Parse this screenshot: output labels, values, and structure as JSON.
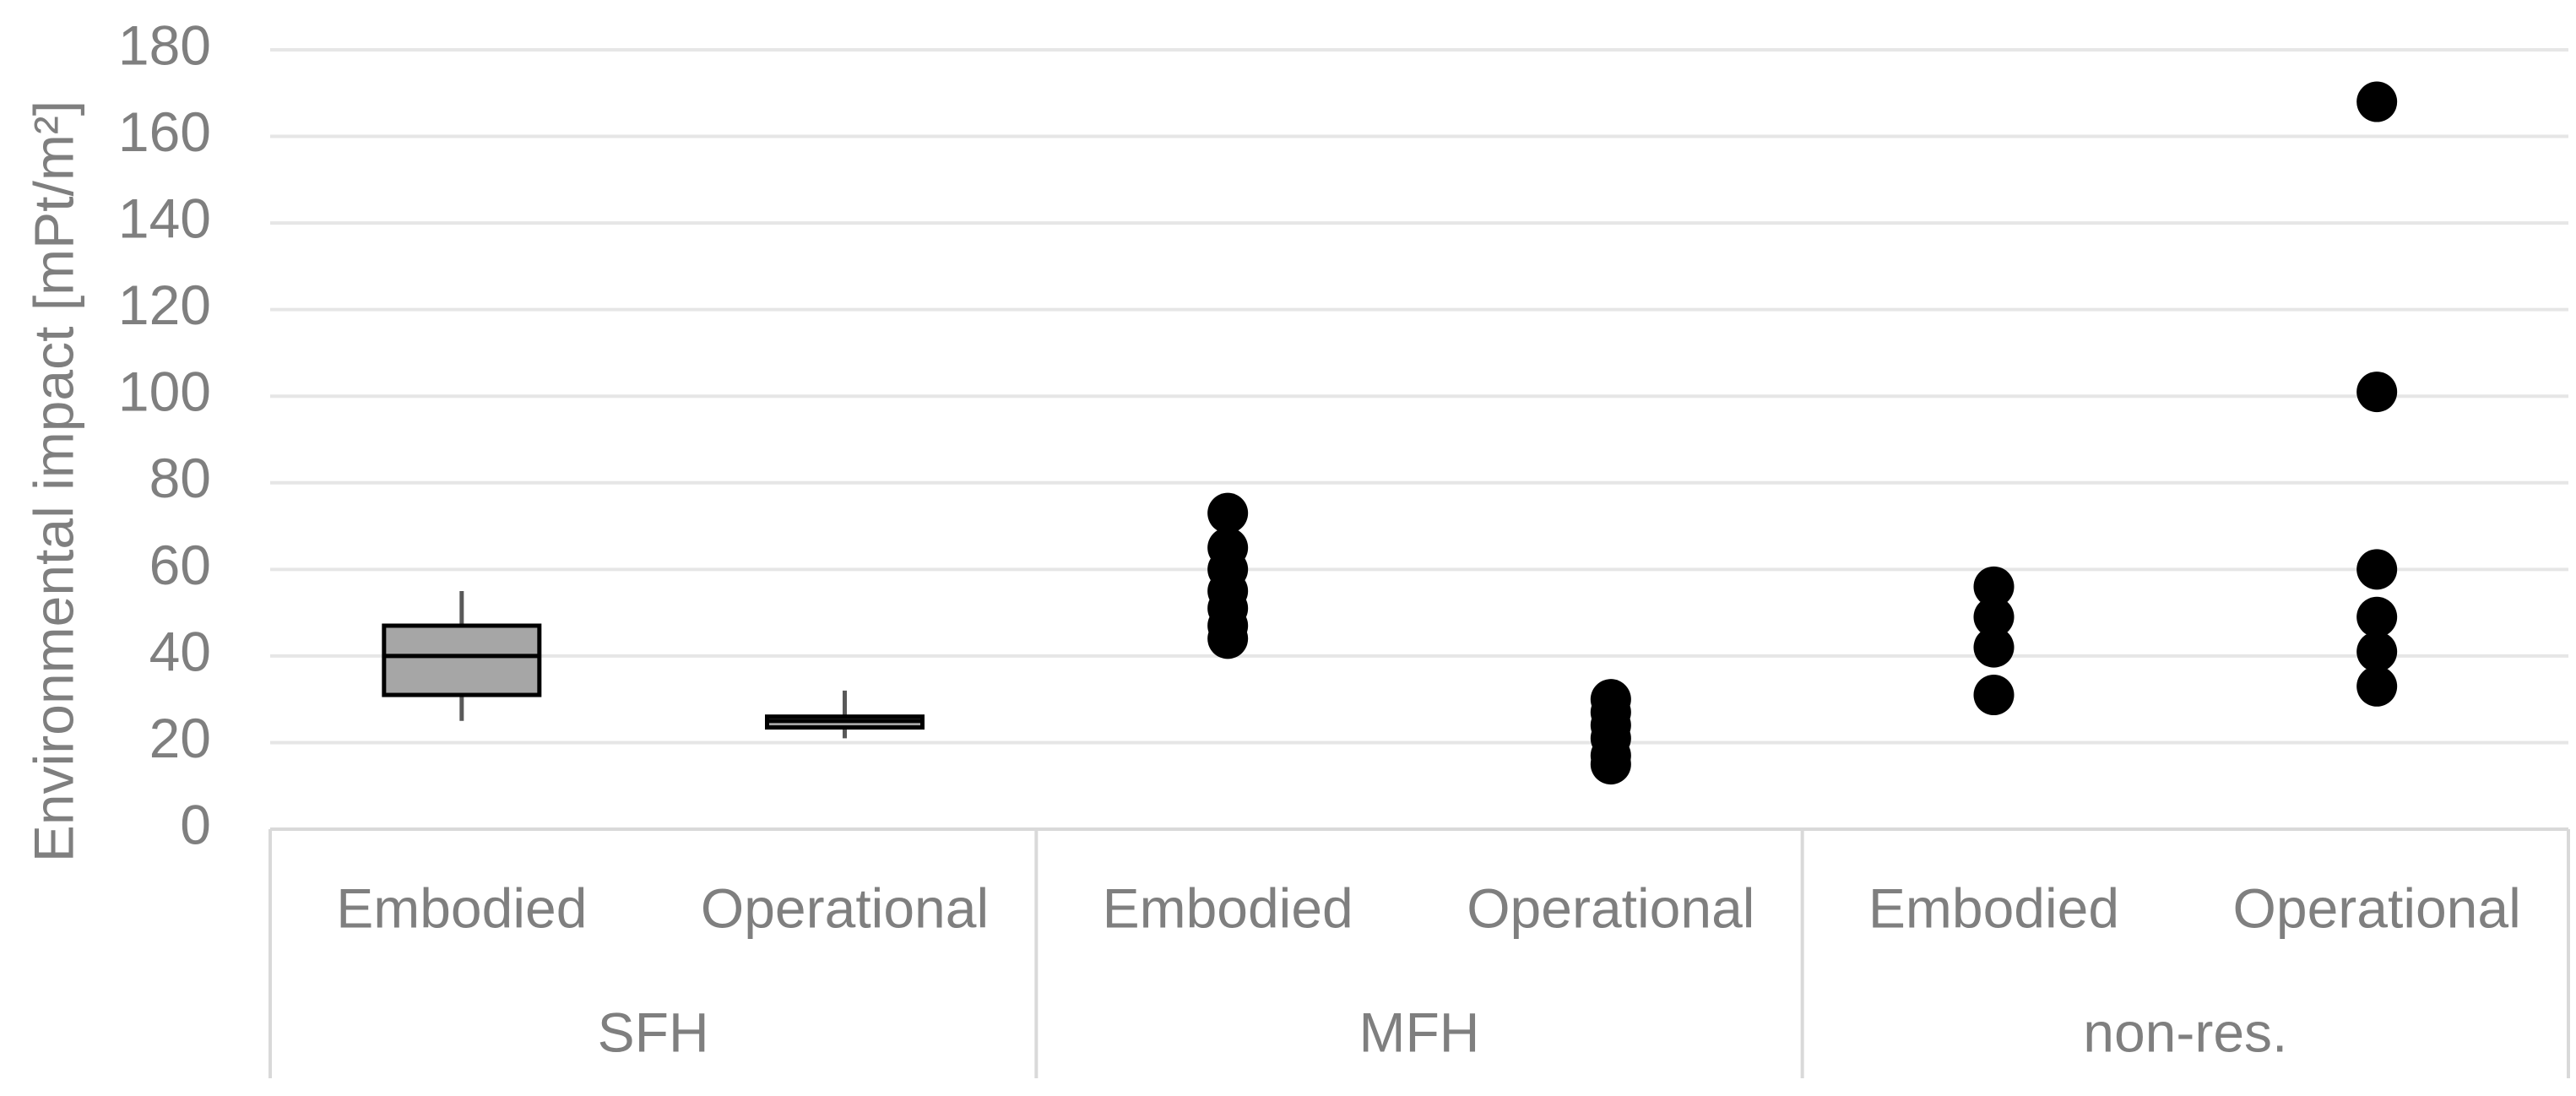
{
  "chart_data": {
    "type": "box",
    "y_label": "Environmental impact [mPt/m²]",
    "ylim": [
      0,
      180
    ],
    "yticks": [
      0,
      20,
      40,
      60,
      80,
      100,
      120,
      140,
      160,
      180
    ],
    "grid": true,
    "box_color": "#a6a6a6",
    "point_color": "#000000",
    "groups": [
      {
        "name": "SFH",
        "categories": [
          {
            "name": "Embodied",
            "type": "box",
            "box": {
              "whislo": 25,
              "q1": 31,
              "med": 40,
              "q3": 47,
              "whishi": 55
            }
          },
          {
            "name": "Operational",
            "type": "box",
            "box": {
              "whislo": 21,
              "q1": 23.5,
              "med": 25,
              "q3": 26,
              "whishi": 32
            }
          }
        ]
      },
      {
        "name": "MFH",
        "categories": [
          {
            "name": "Embodied",
            "type": "scatter",
            "points": [
              73,
              65,
              60,
              55,
              51,
              47,
              44
            ]
          },
          {
            "name": "Operational",
            "type": "scatter",
            "points": [
              30,
              27,
              24,
              21,
              17,
              15
            ]
          }
        ]
      },
      {
        "name": "non-res.",
        "categories": [
          {
            "name": "Embodied",
            "type": "scatter",
            "points": [
              56,
              49,
              42,
              31
            ]
          },
          {
            "name": "Operational",
            "type": "scatter",
            "points": [
              168,
              101,
              60,
              49,
              41,
              33
            ]
          }
        ]
      }
    ]
  }
}
